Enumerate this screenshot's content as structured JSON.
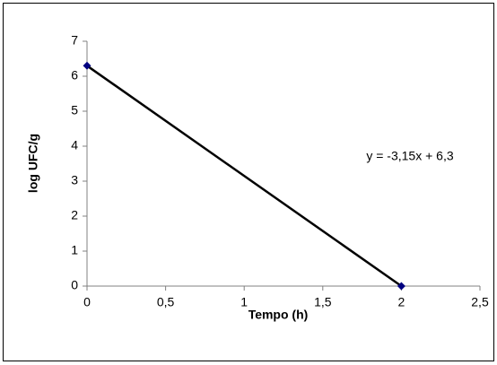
{
  "chart_data": {
    "type": "scatter",
    "xlabel": "Tempo (h)",
    "ylabel": "log UFC/g",
    "annotation": "y = -3,15x + 6,3",
    "series": [
      {
        "x": [
          0,
          2
        ],
        "values": [
          6.3,
          0
        ],
        "color": "#000080",
        "line_color": "#000000"
      }
    ],
    "xlim": [
      0,
      2.5
    ],
    "xticks": [
      0,
      {
        "value": 0.5,
        "label": "0,5"
      },
      1,
      {
        "value": 1.5,
        "label": "1,5"
      },
      2,
      {
        "value": 2.5,
        "label": "2,5"
      }
    ],
    "ylim": [
      0,
      7
    ],
    "yticks": [
      0,
      1,
      2,
      3,
      4,
      5,
      6,
      7
    ],
    "grid": false
  }
}
